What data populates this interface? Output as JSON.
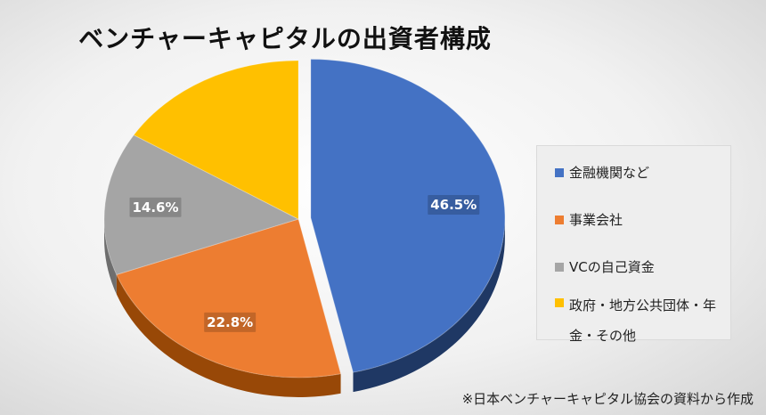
{
  "chart_data": {
    "type": "pie",
    "title": "ベンチャーキャピタルの出資者構成",
    "categories": [
      "金融機関など",
      "事業会社",
      "VCの自己資金",
      "政府・地方公共団体・年金・その他"
    ],
    "values": [
      46.5,
      22.8,
      14.6,
      16.1
    ],
    "data_labels": [
      "46.5%",
      "22.8%",
      "14.6%",
      ""
    ],
    "colors": [
      "#4472C4",
      "#ED7D31",
      "#A5A5A5",
      "#FFC000"
    ],
    "side_colors": [
      "#1F3864",
      "#984807",
      "#6E6E6E",
      "#B8860B"
    ],
    "legend_position": "right",
    "exploded_slice": "金融機関など",
    "style": "3d"
  },
  "source_note": "※日本ベンチャーキャピタル協会の資料から作成"
}
